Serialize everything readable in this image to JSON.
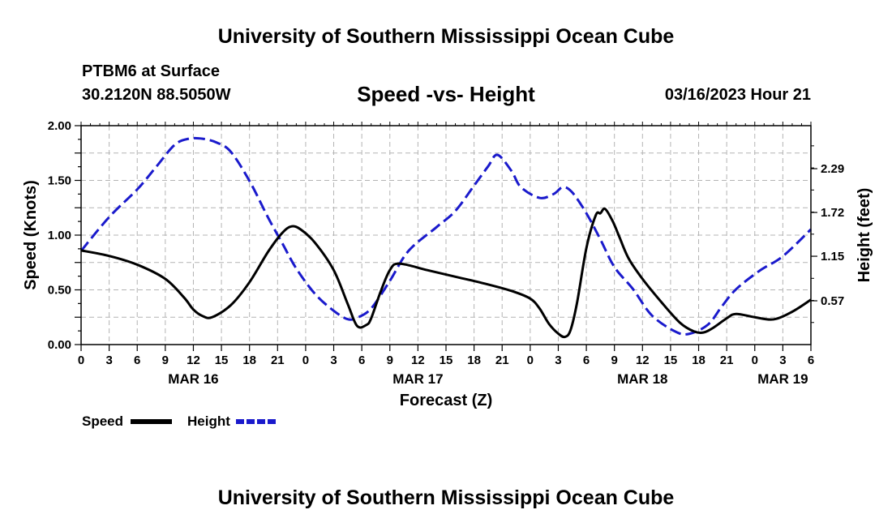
{
  "header": {
    "title_top": "University of Southern Mississippi Ocean Cube",
    "title_bottom": "University of Southern Mississippi Ocean Cube",
    "station": "PTBM6 at Surface",
    "coords": "30.2120N  88.5050W",
    "date": "03/16/2023 Hour 21"
  },
  "chart_data": {
    "type": "line",
    "title": "Speed -vs- Height",
    "xlabel": "Forecast (Z)",
    "ylabel_left": "Speed (Knots)",
    "ylabel_right": "Height (feet)",
    "x_range_hours": [
      0,
      78
    ],
    "x_ticks": [
      {
        "h": 0,
        "label": "0"
      },
      {
        "h": 3,
        "label": "3"
      },
      {
        "h": 6,
        "label": "6"
      },
      {
        "h": 9,
        "label": "9"
      },
      {
        "h": 12,
        "label": "12"
      },
      {
        "h": 15,
        "label": "15"
      },
      {
        "h": 18,
        "label": "18"
      },
      {
        "h": 21,
        "label": "21"
      },
      {
        "h": 24,
        "label": "0"
      },
      {
        "h": 27,
        "label": "3"
      },
      {
        "h": 30,
        "label": "6"
      },
      {
        "h": 33,
        "label": "9"
      },
      {
        "h": 36,
        "label": "12"
      },
      {
        "h": 39,
        "label": "15"
      },
      {
        "h": 42,
        "label": "18"
      },
      {
        "h": 45,
        "label": "21"
      },
      {
        "h": 48,
        "label": "0"
      },
      {
        "h": 51,
        "label": "3"
      },
      {
        "h": 54,
        "label": "6"
      },
      {
        "h": 57,
        "label": "9"
      },
      {
        "h": 60,
        "label": "12"
      },
      {
        "h": 63,
        "label": "15"
      },
      {
        "h": 66,
        "label": "18"
      },
      {
        "h": 69,
        "label": "21"
      },
      {
        "h": 72,
        "label": "0"
      },
      {
        "h": 75,
        "label": "3"
      },
      {
        "h": 78,
        "label": "6"
      }
    ],
    "day_labels": [
      {
        "h": 12,
        "label": "MAR 16"
      },
      {
        "h": 36,
        "label": "MAR 17"
      },
      {
        "h": 60,
        "label": "MAR 18"
      },
      {
        "h": 75,
        "label": "MAR 19"
      }
    ],
    "left_axis": {
      "min": 0,
      "max": 2.0,
      "ticks": [
        "0.00",
        "0.50",
        "1.00",
        "1.50",
        "2.00"
      ]
    },
    "right_axis": {
      "min": 0.0,
      "max": 2.85,
      "ticks": [
        "0.57",
        "1.15",
        "1.72",
        "2.29"
      ]
    },
    "grid": true,
    "legend": [
      {
        "name": "Speed",
        "color": "#000000",
        "style": "solid"
      },
      {
        "name": "Height",
        "color": "#1a1acc",
        "style": "dashed"
      }
    ],
    "series": [
      {
        "name": "Speed",
        "units": "Knots",
        "axis": "left",
        "color": "#000000",
        "dash": false,
        "x": [
          0,
          3,
          6,
          9,
          11,
          12,
          13,
          14,
          16,
          18,
          20,
          21.5,
          22.5,
          23.5,
          25,
          27,
          28.5,
          29.5,
          30.5,
          31,
          32,
          33,
          34,
          37,
          40,
          43,
          46,
          48,
          49,
          50,
          51,
          51.7,
          52.3,
          53,
          54,
          55,
          55.5,
          56,
          56.8,
          57.5,
          58.5,
          60,
          62,
          64,
          65.5,
          66.5,
          67.5,
          69,
          70,
          72,
          74,
          76,
          78
        ],
        "values": [
          0.86,
          0.81,
          0.73,
          0.6,
          0.43,
          0.32,
          0.26,
          0.25,
          0.36,
          0.57,
          0.85,
          1.02,
          1.08,
          1.05,
          0.93,
          0.68,
          0.37,
          0.17,
          0.18,
          0.24,
          0.48,
          0.68,
          0.74,
          0.68,
          0.62,
          0.56,
          0.49,
          0.42,
          0.33,
          0.19,
          0.1,
          0.07,
          0.13,
          0.38,
          0.88,
          1.18,
          1.2,
          1.24,
          1.13,
          0.99,
          0.79,
          0.6,
          0.39,
          0.2,
          0.12,
          0.11,
          0.15,
          0.24,
          0.28,
          0.25,
          0.23,
          0.3,
          0.41
        ]
      },
      {
        "name": "Height",
        "units": "feet",
        "axis": "right",
        "color": "#1a1acc",
        "dash": true,
        "x": [
          0,
          3,
          6,
          8,
          10,
          11.5,
          13,
          14.5,
          16,
          18,
          20,
          21.5,
          23,
          25,
          27,
          28.5,
          29.5,
          31,
          33,
          35,
          38,
          40,
          42,
          43.5,
          44.5,
          46,
          47,
          49,
          50.5,
          51.5,
          52.5,
          54,
          55.5,
          57,
          59,
          61,
          63.5,
          65,
          67,
          68.5,
          70,
          72.5,
          75,
          78
        ],
        "values": [
          1.22,
          1.66,
          2.02,
          2.31,
          2.6,
          2.68,
          2.68,
          2.63,
          2.51,
          2.13,
          1.65,
          1.32,
          0.99,
          0.66,
          0.44,
          0.33,
          0.35,
          0.47,
          0.83,
          1.22,
          1.53,
          1.74,
          2.07,
          2.32,
          2.47,
          2.26,
          2.05,
          1.91,
          1.96,
          2.05,
          1.98,
          1.71,
          1.37,
          1.01,
          0.72,
          0.38,
          0.17,
          0.14,
          0.26,
          0.5,
          0.72,
          0.96,
          1.15,
          1.5
        ]
      }
    ]
  }
}
